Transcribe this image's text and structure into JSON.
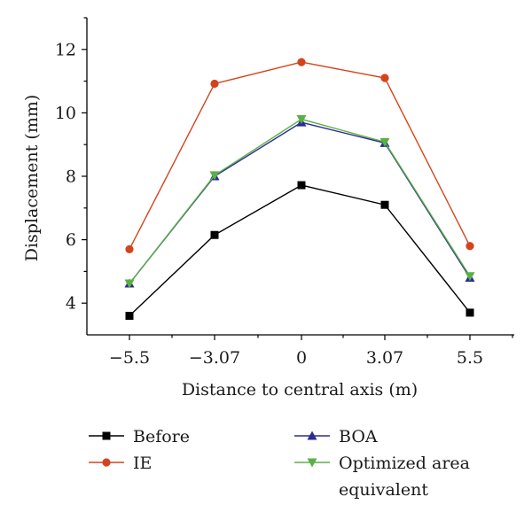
{
  "chart_data": {
    "type": "line",
    "title": "",
    "xlabel": "Distance to central axis (m)",
    "ylabel": "Displacement (mm)",
    "x": [
      -5.5,
      -3.07,
      0,
      3.07,
      5.5
    ],
    "x_tick_labels": [
      "−5.5",
      "−3.07",
      "0",
      "3.07",
      "5.5"
    ],
    "y_ticks": [
      4,
      6,
      8,
      10,
      12
    ],
    "y_tick_labels": [
      "4",
      "6",
      "8",
      "10",
      "12"
    ],
    "ylim": [
      3,
      13
    ],
    "grid": false,
    "legend_position": "bottom",
    "series": [
      {
        "name": "Before",
        "values": [
          3.6,
          6.15,
          7.72,
          7.1,
          3.7
        ],
        "color": "#000000",
        "marker": "square"
      },
      {
        "name": "IE",
        "values": [
          5.7,
          10.92,
          11.6,
          11.1,
          5.8
        ],
        "color": "#d4441c",
        "marker": "circle"
      },
      {
        "name": "BOA",
        "values": [
          4.62,
          8.0,
          9.7,
          9.05,
          4.8
        ],
        "color": "#2b2d8f",
        "marker": "triangle-up"
      },
      {
        "name": "Optimized area equivalent",
        "name_lines": [
          "Optimized area",
          "equivalent"
        ],
        "values": [
          4.62,
          8.03,
          9.8,
          9.08,
          4.85
        ],
        "color": "#5ab046",
        "marker": "triangle-down"
      }
    ]
  }
}
